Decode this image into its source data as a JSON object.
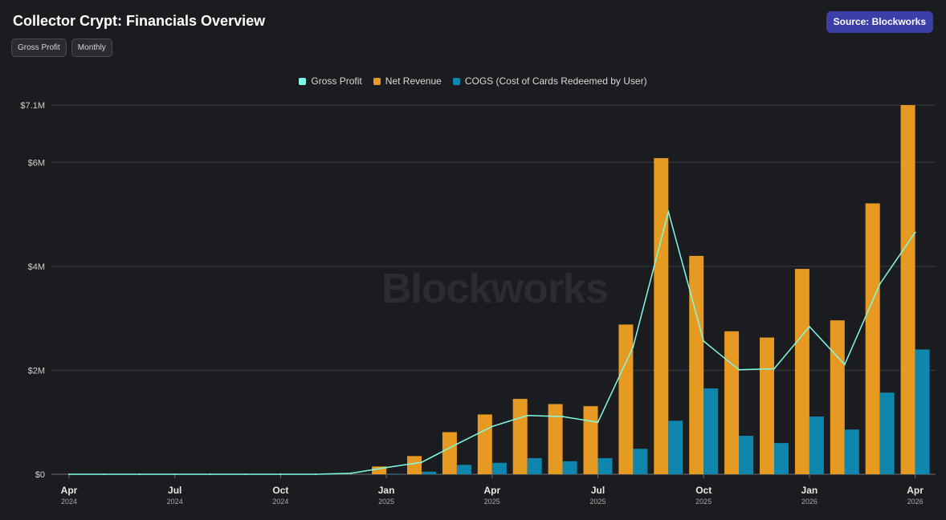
{
  "header": {
    "title": "Collector Crypt: Financials Overview",
    "chips": [
      "Gross Profit",
      "Monthly"
    ],
    "source_label": "Source: Blockworks"
  },
  "watermark": "Blockworks",
  "colors": {
    "gross_profit": "#7ffbe6",
    "net_revenue": "#e69a22",
    "cogs": "#0f86ad",
    "grid": "#3a3b40",
    "axis_text": "#cfcfcf"
  },
  "chart_data": {
    "type": "bar",
    "title": "Collector Crypt: Financials Overview",
    "ylim": [
      0,
      7100000
    ],
    "y_ticks": [
      {
        "value": 0,
        "label": "$0"
      },
      {
        "value": 2000000,
        "label": "$2M"
      },
      {
        "value": 4000000,
        "label": "$4M"
      },
      {
        "value": 6000000,
        "label": "$6M"
      },
      {
        "value": 7100000,
        "label": "$7.1M"
      }
    ],
    "x_ticks": [
      {
        "index": 0,
        "month": "Apr",
        "year": "2024"
      },
      {
        "index": 3,
        "month": "Jul",
        "year": "2024"
      },
      {
        "index": 6,
        "month": "Oct",
        "year": "2024"
      },
      {
        "index": 9,
        "month": "Jan",
        "year": "2025"
      },
      {
        "index": 12,
        "month": "Apr",
        "year": "2025"
      },
      {
        "index": 15,
        "month": "Jul",
        "year": "2025"
      },
      {
        "index": 18,
        "month": "Oct",
        "year": "2025"
      },
      {
        "index": 21,
        "month": "Jan",
        "year": "2026"
      },
      {
        "index": 24,
        "month": "Apr",
        "year": "2026"
      }
    ],
    "categories": [
      "2024-04",
      "2024-05",
      "2024-06",
      "2024-07",
      "2024-08",
      "2024-09",
      "2024-10",
      "2024-11",
      "2024-12",
      "2025-01",
      "2025-02",
      "2025-03",
      "2025-04",
      "2025-05",
      "2025-06",
      "2025-07",
      "2025-08",
      "2025-09",
      "2025-10",
      "2025-11",
      "2025-12",
      "2026-01",
      "2026-02",
      "2026-03",
      "2026-04"
    ],
    "grid": true,
    "legend_position": "top-center",
    "series": [
      {
        "name": "Gross Profit",
        "kind": "line",
        "values": [
          0,
          0,
          0,
          0,
          0,
          0,
          0,
          0,
          20000,
          130000,
          230000,
          580000,
          920000,
          1130000,
          1110000,
          1000000,
          2450000,
          5050000,
          2560000,
          2010000,
          2030000,
          2840000,
          2110000,
          3660000,
          4650000
        ]
      },
      {
        "name": "Net Revenue",
        "kind": "bar",
        "values": [
          0,
          0,
          0,
          0,
          0,
          0,
          0,
          0,
          0,
          150000,
          350000,
          810000,
          1150000,
          1450000,
          1350000,
          1310000,
          2880000,
          6080000,
          4200000,
          2750000,
          2630000,
          3950000,
          2960000,
          5210000,
          7100000
        ]
      },
      {
        "name": "COGS (Cost of Cards Redeemed by User)",
        "kind": "bar",
        "values": [
          0,
          0,
          0,
          0,
          0,
          0,
          0,
          0,
          0,
          10000,
          50000,
          180000,
          220000,
          310000,
          250000,
          310000,
          490000,
          1030000,
          1650000,
          740000,
          600000,
          1110000,
          860000,
          1570000,
          2400000
        ]
      }
    ]
  }
}
